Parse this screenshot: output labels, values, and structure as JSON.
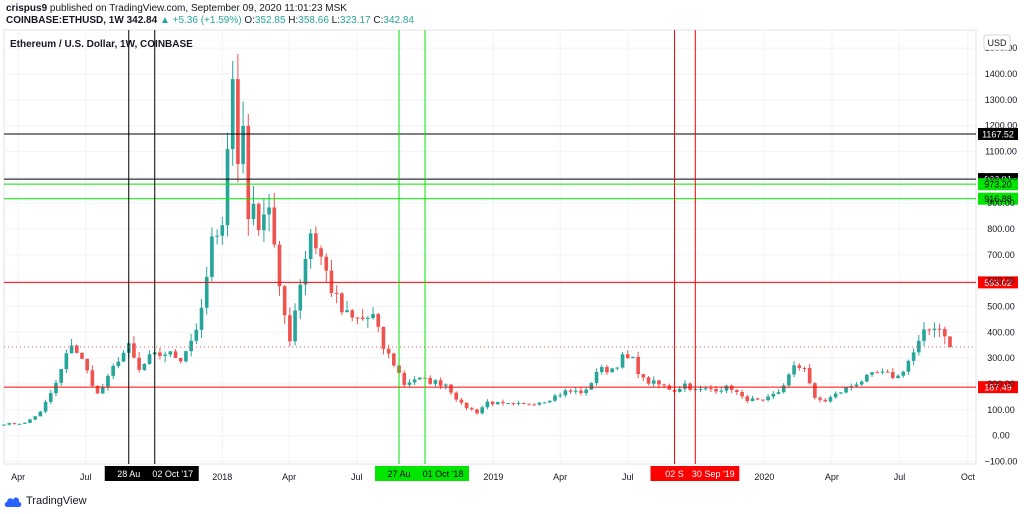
{
  "header": {
    "author": "crispus9",
    "publish_text": "published on TradingView.com, September 09, 2020 11:01:23 MSK",
    "symbol": "COINBASE:ETHUSD, 1W",
    "last": "342.84",
    "change": "▲ +5.36 (+1.59%)",
    "o_label": "O:",
    "o_value": "352.85",
    "h_label": "H:",
    "h_value": "358.66",
    "l_label": "L:",
    "l_value": "323.17",
    "c_label": "C:",
    "c_value": "342.84"
  },
  "footer": {
    "brand": "TradingView"
  },
  "colors": {
    "up": "#26a69a",
    "down": "#ef5350",
    "grid": "#f0f3fa",
    "text": "#131722",
    "green_line": "#00e600",
    "red_line": "#ff0000",
    "black_line": "#000000"
  },
  "chart_data": {
    "type": "candlestick",
    "title": "Ethereum / U.S. Dollar, 1W, COINBASE",
    "currency": "USD",
    "y_ticks": [
      -100,
      0,
      100,
      200,
      300,
      400,
      500,
      600,
      700,
      800,
      900,
      1000,
      1100,
      1200,
      1300,
      1400,
      1500
    ],
    "y_tick_labels": [
      "−100.00",
      "0.00",
      "100.00",
      "200.00",
      "300.00",
      "400.00",
      "500.00",
      "600.00",
      "700.00",
      "800.00",
      "900.00",
      "1000.00",
      "1100.00",
      "1200.00",
      "1300.00",
      "1400.00",
      "1500.00"
    ],
    "ylim": [
      -110,
      1570
    ],
    "xlim": [
      "2017-03-13",
      "2020-10-12"
    ],
    "x_ticks": [
      {
        "date": "2017-04-01",
        "label": "Apr"
      },
      {
        "date": "2017-07-01",
        "label": "Jul"
      },
      {
        "date": "2018-01-01",
        "label": "2018"
      },
      {
        "date": "2018-04-01",
        "label": "Apr"
      },
      {
        "date": "2018-07-01",
        "label": "Jul"
      },
      {
        "date": "2019-01-01",
        "label": "2019"
      },
      {
        "date": "2019-04-01",
        "label": "Apr"
      },
      {
        "date": "2019-07-01",
        "label": "Jul"
      },
      {
        "date": "2020-01-01",
        "label": "2020"
      },
      {
        "date": "2020-04-01",
        "label": "Apr"
      },
      {
        "date": "2020-07-01",
        "label": "Jul"
      },
      {
        "date": "2020-10-01",
        "label": "Oct"
      }
    ],
    "horizontal_lines": [
      {
        "value": 1167.52,
        "label": "1167.52",
        "color": "#000000"
      },
      {
        "value": 992.91,
        "label": "992.91",
        "color": "#000000"
      },
      {
        "value": 973.2,
        "label": "973.20",
        "color": "#00e600"
      },
      {
        "value": 916.88,
        "label": "916.88",
        "color": "#00e600"
      },
      {
        "value": 593.02,
        "label": "593.02",
        "color": "#ff0000"
      },
      {
        "value": 187.49,
        "label": "187.49",
        "color": "#ff0000"
      }
    ],
    "vertical_lines": [
      {
        "date": "2017-08-28",
        "label": "28 Au",
        "color": "#000000"
      },
      {
        "date": "2017-10-02",
        "label": "02 Oct '17",
        "color": "#000000"
      },
      {
        "date": "2018-08-27",
        "label": "27 Au",
        "color": "#00e600"
      },
      {
        "date": "2018-10-01",
        "label": "01 Oct '18",
        "color": "#00e600"
      },
      {
        "date": "2019-09-02",
        "label": "02 S",
        "color": "#ff0000"
      },
      {
        "date": "2019-09-30",
        "label": "30 Sep '19",
        "color": "#ff0000"
      }
    ],
    "last_price": 342.84,
    "anchors": [
      [
        "2017-03-13",
        45
      ],
      [
        "2017-04-10",
        48
      ],
      [
        "2017-05-01",
        90
      ],
      [
        "2017-05-22",
        200
      ],
      [
        "2017-06-12",
        360
      ],
      [
        "2017-06-26",
        290
      ],
      [
        "2017-07-17",
        160
      ],
      [
        "2017-07-31",
        220
      ],
      [
        "2017-08-14",
        300
      ],
      [
        "2017-08-28",
        340
      ],
      [
        "2017-09-11",
        250
      ],
      [
        "2017-09-25",
        300
      ],
      [
        "2017-10-16",
        320
      ],
      [
        "2017-11-06",
        300
      ],
      [
        "2017-11-20",
        370
      ],
      [
        "2017-12-04",
        470
      ],
      [
        "2017-12-18",
        750
      ],
      [
        "2017-12-25",
        740
      ],
      [
        "2018-01-01",
        860
      ],
      [
        "2018-01-08",
        1140
      ],
      [
        "2018-01-15",
        1370
      ],
      [
        "2018-01-22",
        1050
      ],
      [
        "2018-01-29",
        1210
      ],
      [
        "2018-02-05",
        870
      ],
      [
        "2018-02-19",
        840
      ],
      [
        "2018-03-05",
        900
      ],
      [
        "2018-03-19",
        550
      ],
      [
        "2018-04-02",
        380
      ],
      [
        "2018-04-16",
        600
      ],
      [
        "2018-04-30",
        790
      ],
      [
        "2018-05-14",
        690
      ],
      [
        "2018-05-28",
        570
      ],
      [
        "2018-06-11",
        480
      ],
      [
        "2018-06-25",
        450
      ],
      [
        "2018-07-09",
        450
      ],
      [
        "2018-07-23",
        460
      ],
      [
        "2018-08-06",
        340
      ],
      [
        "2018-08-20",
        280
      ],
      [
        "2018-09-03",
        200
      ],
      [
        "2018-09-17",
        220
      ],
      [
        "2018-10-08",
        210
      ],
      [
        "2018-10-29",
        200
      ],
      [
        "2018-11-19",
        120
      ],
      [
        "2018-12-10",
        90
      ],
      [
        "2018-12-24",
        130
      ],
      [
        "2019-01-14",
        120
      ],
      [
        "2019-02-11",
        120
      ],
      [
        "2019-03-11",
        135
      ],
      [
        "2019-04-08",
        170
      ],
      [
        "2019-05-06",
        170
      ],
      [
        "2019-05-20",
        250
      ],
      [
        "2019-06-10",
        260
      ],
      [
        "2019-06-24",
        300
      ],
      [
        "2019-07-08",
        290
      ],
      [
        "2019-07-22",
        215
      ],
      [
        "2019-08-19",
        190
      ],
      [
        "2019-09-02",
        175
      ],
      [
        "2019-09-16",
        200
      ],
      [
        "2019-09-30",
        175
      ],
      [
        "2019-10-21",
        180
      ],
      [
        "2019-11-18",
        185
      ],
      [
        "2019-12-02",
        145
      ],
      [
        "2019-12-30",
        130
      ],
      [
        "2020-01-20",
        170
      ],
      [
        "2020-02-10",
        260
      ],
      [
        "2020-02-24",
        270
      ],
      [
        "2020-03-09",
        140
      ],
      [
        "2020-03-23",
        135
      ],
      [
        "2020-04-13",
        170
      ],
      [
        "2020-05-04",
        205
      ],
      [
        "2020-06-01",
        240
      ],
      [
        "2020-06-29",
        228
      ],
      [
        "2020-07-20",
        320
      ],
      [
        "2020-08-03",
        390
      ],
      [
        "2020-08-17",
        430
      ],
      [
        "2020-08-31",
        400
      ],
      [
        "2020-09-07",
        342.84
      ]
    ]
  }
}
